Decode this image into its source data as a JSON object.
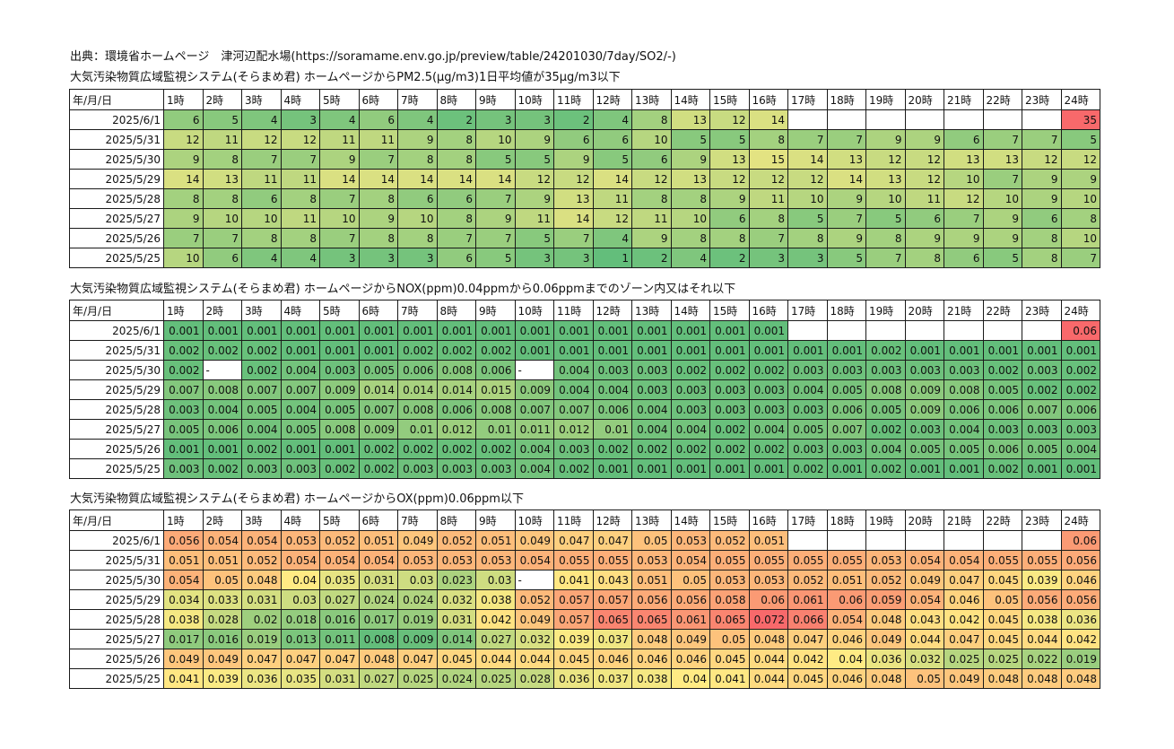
{
  "source": "出典：環境省ホームページ　津河辺配水場(https://soramame.env.go.jp/preview/table/24201030/7day/SO2/-)",
  "colors": {
    "green": "#63be7b",
    "yellow": "#ffeb84",
    "red": "#f8696b",
    "border": "#1a1a1a"
  },
  "tables": [
    {
      "title": "大気汚染物質広域監視システム(そらまめ君) ホームページからPM2.5(μg/m3)1日平均値が35μg/m3以下",
      "corner": "年/月/日",
      "hours": [
        "1時",
        "2時",
        "3時",
        "4時",
        "5時",
        "6時",
        "7時",
        "8時",
        "9時",
        "10時",
        "11時",
        "12時",
        "13時",
        "14時",
        "15時",
        "16時",
        "17時",
        "18時",
        "19時",
        "20時",
        "21時",
        "22時",
        "23時",
        "24時"
      ],
      "rows": [
        {
          "date": "2025/6/1",
          "values": [
            "6",
            "5",
            "4",
            "3",
            "4",
            "6",
            "4",
            "2",
            "3",
            "3",
            "2",
            "4",
            "8",
            "13",
            "12",
            "14",
            "",
            "",
            "",
            "",
            "",
            "",
            "",
            "35"
          ]
        },
        {
          "date": "2025/5/31",
          "values": [
            "12",
            "11",
            "12",
            "12",
            "11",
            "11",
            "9",
            "8",
            "10",
            "9",
            "6",
            "6",
            "10",
            "5",
            "5",
            "8",
            "7",
            "7",
            "9",
            "9",
            "6",
            "7",
            "7",
            "5"
          ]
        },
        {
          "date": "2025/5/30",
          "values": [
            "9",
            "8",
            "7",
            "7",
            "9",
            "7",
            "8",
            "8",
            "5",
            "5",
            "9",
            "5",
            "6",
            "9",
            "13",
            "15",
            "14",
            "13",
            "12",
            "12",
            "13",
            "13",
            "12",
            "12"
          ]
        },
        {
          "date": "2025/5/29",
          "values": [
            "14",
            "13",
            "11",
            "11",
            "14",
            "14",
            "14",
            "14",
            "14",
            "12",
            "12",
            "14",
            "12",
            "13",
            "12",
            "12",
            "12",
            "14",
            "13",
            "12",
            "10",
            "7",
            "9",
            "9"
          ]
        },
        {
          "date": "2025/5/28",
          "values": [
            "8",
            "8",
            "6",
            "8",
            "7",
            "8",
            "6",
            "6",
            "7",
            "9",
            "13",
            "11",
            "8",
            "8",
            "9",
            "11",
            "10",
            "9",
            "10",
            "11",
            "12",
            "10",
            "9",
            "10"
          ]
        },
        {
          "date": "2025/5/27",
          "values": [
            "9",
            "10",
            "10",
            "11",
            "10",
            "9",
            "10",
            "8",
            "9",
            "11",
            "14",
            "12",
            "11",
            "10",
            "6",
            "8",
            "5",
            "7",
            "5",
            "6",
            "7",
            "9",
            "6",
            "8"
          ]
        },
        {
          "date": "2025/5/26",
          "values": [
            "7",
            "7",
            "8",
            "8",
            "7",
            "8",
            "8",
            "7",
            "7",
            "5",
            "7",
            "4",
            "9",
            "8",
            "8",
            "7",
            "8",
            "9",
            "8",
            "9",
            "9",
            "9",
            "8",
            "10"
          ]
        },
        {
          "date": "2025/5/25",
          "values": [
            "10",
            "6",
            "4",
            "4",
            "3",
            "3",
            "3",
            "6",
            "5",
            "3",
            "3",
            "1",
            "2",
            "4",
            "2",
            "3",
            "3",
            "5",
            "7",
            "8",
            "6",
            "5",
            "8",
            "7"
          ]
        }
      ]
    },
    {
      "title": "大気汚染物質広域監視システム(そらまめ君) ホームページからNOX(ppm)0.04ppmから0.06ppmまでのゾーン内又はそれ以下",
      "corner": "年/月/日",
      "hours": [
        "1時",
        "2時",
        "3時",
        "4時",
        "5時",
        "6時",
        "7時",
        "8時",
        "9時",
        "10時",
        "11時",
        "12時",
        "13時",
        "14時",
        "15時",
        "16時",
        "17時",
        "18時",
        "19時",
        "20時",
        "21時",
        "22時",
        "23時",
        "24時"
      ],
      "rows": [
        {
          "date": "2025/6/1",
          "values": [
            "0.001",
            "0.001",
            "0.001",
            "0.001",
            "0.001",
            "0.001",
            "0.001",
            "0.001",
            "0.001",
            "0.001",
            "0.001",
            "0.001",
            "0.001",
            "0.001",
            "0.001",
            "0.001",
            "",
            "",
            "",
            "",
            "",
            "",
            "",
            "0.06"
          ]
        },
        {
          "date": "2025/5/31",
          "values": [
            "0.002",
            "0.002",
            "0.002",
            "0.001",
            "0.001",
            "0.001",
            "0.002",
            "0.002",
            "0.002",
            "0.001",
            "0.001",
            "0.001",
            "0.001",
            "0.001",
            "0.001",
            "0.001",
            "0.001",
            "0.001",
            "0.002",
            "0.001",
            "0.001",
            "0.001",
            "0.001",
            "0.001"
          ]
        },
        {
          "date": "2025/5/30",
          "values": [
            "0.002",
            "-",
            "0.002",
            "0.004",
            "0.003",
            "0.005",
            "0.006",
            "0.008",
            "0.006",
            "-",
            "0.004",
            "0.003",
            "0.003",
            "0.002",
            "0.002",
            "0.002",
            "0.003",
            "0.003",
            "0.003",
            "0.003",
            "0.003",
            "0.002",
            "0.003",
            "0.002"
          ]
        },
        {
          "date": "2025/5/29",
          "values": [
            "0.007",
            "0.008",
            "0.007",
            "0.007",
            "0.009",
            "0.014",
            "0.014",
            "0.014",
            "0.015",
            "0.009",
            "0.004",
            "0.004",
            "0.003",
            "0.003",
            "0.003",
            "0.003",
            "0.004",
            "0.005",
            "0.008",
            "0.009",
            "0.008",
            "0.005",
            "0.002",
            "0.002"
          ]
        },
        {
          "date": "2025/5/28",
          "values": [
            "0.003",
            "0.004",
            "0.005",
            "0.004",
            "0.005",
            "0.007",
            "0.008",
            "0.006",
            "0.008",
            "0.007",
            "0.007",
            "0.006",
            "0.004",
            "0.003",
            "0.003",
            "0.003",
            "0.003",
            "0.006",
            "0.005",
            "0.009",
            "0.006",
            "0.006",
            "0.007",
            "0.006"
          ]
        },
        {
          "date": "2025/5/27",
          "values": [
            "0.005",
            "0.006",
            "0.004",
            "0.005",
            "0.008",
            "0.009",
            "0.01",
            "0.012",
            "0.01",
            "0.011",
            "0.012",
            "0.01",
            "0.004",
            "0.004",
            "0.002",
            "0.004",
            "0.005",
            "0.007",
            "0.002",
            "0.003",
            "0.004",
            "0.003",
            "0.003",
            "0.003"
          ]
        },
        {
          "date": "2025/5/26",
          "values": [
            "0.001",
            "0.001",
            "0.002",
            "0.001",
            "0.001",
            "0.002",
            "0.002",
            "0.002",
            "0.002",
            "0.004",
            "0.003",
            "0.002",
            "0.002",
            "0.002",
            "0.002",
            "0.002",
            "0.003",
            "0.003",
            "0.004",
            "0.005",
            "0.005",
            "0.006",
            "0.005",
            "0.004"
          ]
        },
        {
          "date": "2025/5/25",
          "values": [
            "0.003",
            "0.002",
            "0.003",
            "0.003",
            "0.002",
            "0.002",
            "0.003",
            "0.003",
            "0.003",
            "0.004",
            "0.002",
            "0.001",
            "0.001",
            "0.001",
            "0.001",
            "0.001",
            "0.002",
            "0.001",
            "0.002",
            "0.001",
            "0.001",
            "0.002",
            "0.001",
            "0.001"
          ]
        }
      ]
    },
    {
      "title": "大気汚染物質広域監視システム(そらまめ君) ホームページからOX(ppm)0.06ppm以下",
      "corner": "年/月/日",
      "hours": [
        "1時",
        "2時",
        "3時",
        "4時",
        "5時",
        "6時",
        "7時",
        "8時",
        "9時",
        "10時",
        "11時",
        "12時",
        "13時",
        "14時",
        "15時",
        "16時",
        "17時",
        "18時",
        "19時",
        "20時",
        "21時",
        "22時",
        "23時",
        "24時"
      ],
      "rows": [
        {
          "date": "2025/6/1",
          "values": [
            "0.056",
            "0.054",
            "0.054",
            "0.053",
            "0.052",
            "0.051",
            "0.049",
            "0.052",
            "0.051",
            "0.049",
            "0.047",
            "0.047",
            "0.05",
            "0.053",
            "0.052",
            "0.051",
            "",
            "",
            "",
            "",
            "",
            "",
            "",
            "0.06"
          ]
        },
        {
          "date": "2025/5/31",
          "values": [
            "0.051",
            "0.051",
            "0.052",
            "0.054",
            "0.054",
            "0.054",
            "0.053",
            "0.053",
            "0.053",
            "0.054",
            "0.055",
            "0.055",
            "0.053",
            "0.054",
            "0.055",
            "0.055",
            "0.055",
            "0.055",
            "0.053",
            "0.054",
            "0.054",
            "0.055",
            "0.055",
            "0.056"
          ]
        },
        {
          "date": "2025/5/30",
          "values": [
            "0.054",
            "0.05",
            "0.048",
            "0.04",
            "0.035",
            "0.031",
            "0.03",
            "0.023",
            "0.03",
            "-",
            "0.041",
            "0.043",
            "0.051",
            "0.05",
            "0.053",
            "0.053",
            "0.052",
            "0.051",
            "0.052",
            "0.049",
            "0.047",
            "0.045",
            "0.039",
            "0.046"
          ]
        },
        {
          "date": "2025/5/29",
          "values": [
            "0.034",
            "0.033",
            "0.031",
            "0.03",
            "0.027",
            "0.024",
            "0.024",
            "0.032",
            "0.038",
            "0.052",
            "0.057",
            "0.057",
            "0.056",
            "0.056",
            "0.058",
            "0.06",
            "0.061",
            "0.06",
            "0.059",
            "0.054",
            "0.046",
            "0.05",
            "0.056",
            "0.056"
          ]
        },
        {
          "date": "2025/5/28",
          "values": [
            "0.038",
            "0.028",
            "0.02",
            "0.018",
            "0.016",
            "0.017",
            "0.019",
            "0.031",
            "0.042",
            "0.049",
            "0.057",
            "0.065",
            "0.065",
            "0.061",
            "0.065",
            "0.072",
            "0.066",
            "0.054",
            "0.048",
            "0.043",
            "0.042",
            "0.045",
            "0.038",
            "0.036"
          ]
        },
        {
          "date": "2025/5/27",
          "values": [
            "0.017",
            "0.016",
            "0.019",
            "0.013",
            "0.011",
            "0.008",
            "0.009",
            "0.014",
            "0.027",
            "0.032",
            "0.039",
            "0.037",
            "0.048",
            "0.049",
            "0.05",
            "0.048",
            "0.047",
            "0.046",
            "0.049",
            "0.044",
            "0.047",
            "0.045",
            "0.044",
            "0.042"
          ]
        },
        {
          "date": "2025/5/26",
          "values": [
            "0.049",
            "0.049",
            "0.047",
            "0.047",
            "0.047",
            "0.048",
            "0.047",
            "0.045",
            "0.044",
            "0.044",
            "0.045",
            "0.046",
            "0.046",
            "0.046",
            "0.045",
            "0.044",
            "0.042",
            "0.04",
            "0.036",
            "0.032",
            "0.025",
            "0.025",
            "0.022",
            "0.019"
          ]
        },
        {
          "date": "2025/5/25",
          "values": [
            "0.041",
            "0.039",
            "0.036",
            "0.035",
            "0.031",
            "0.027",
            "0.025",
            "0.024",
            "0.025",
            "0.028",
            "0.036",
            "0.037",
            "0.038",
            "0.04",
            "0.041",
            "0.044",
            "0.045",
            "0.046",
            "0.048",
            "0.05",
            "0.049",
            "0.048",
            "0.048",
            "0.048"
          ]
        }
      ]
    }
  ]
}
